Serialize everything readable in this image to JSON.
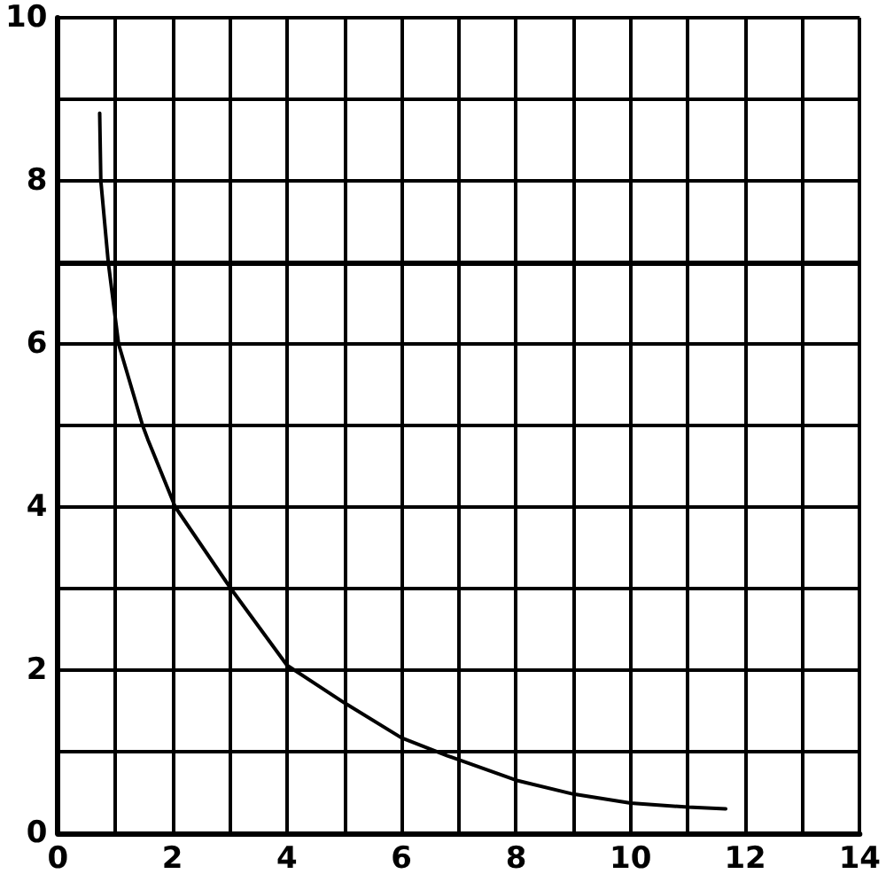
{
  "chart_data": {
    "type": "line",
    "x": [
      0.73,
      0.75,
      0.88,
      1.06,
      1.48,
      1.57,
      2.05,
      3.02,
      4.0,
      5.0,
      6.0,
      6.8,
      8.0,
      9.0,
      10.0,
      11.0,
      11.66
    ],
    "values": [
      8.83,
      8.0,
      7.0,
      6.0,
      5.0,
      4.83,
      4.0,
      3.0,
      2.06,
      1.6,
      1.17,
      0.95,
      0.65,
      0.48,
      0.37,
      0.32,
      0.3
    ],
    "color": "#000000",
    "xlim": [
      0,
      14
    ],
    "ylim": [
      0,
      10
    ],
    "xticks": [
      0,
      {
        "value": 1,
        "label": null
      },
      2,
      {
        "value": 3,
        "label": null
      },
      4,
      {
        "value": 5,
        "label": null
      },
      6,
      {
        "value": 7,
        "label": null
      },
      8,
      {
        "value": 9,
        "label": null
      },
      10,
      {
        "value": 11,
        "label": null
      },
      12,
      {
        "value": 13,
        "label": null
      },
      14
    ],
    "yticks": [
      0,
      {
        "value": 1,
        "label": null
      },
      2,
      {
        "value": 3,
        "label": null
      },
      4,
      {
        "value": 5,
        "label": null
      },
      6,
      {
        "value": 7,
        "label": null
      },
      8,
      {
        "value": 9,
        "label": null
      },
      10
    ],
    "grid": true,
    "marker": "none",
    "line_style": "solid",
    "ref_lines": [
      {
        "axis": "y",
        "value": 7,
        "color": "#000000"
      }
    ]
  }
}
